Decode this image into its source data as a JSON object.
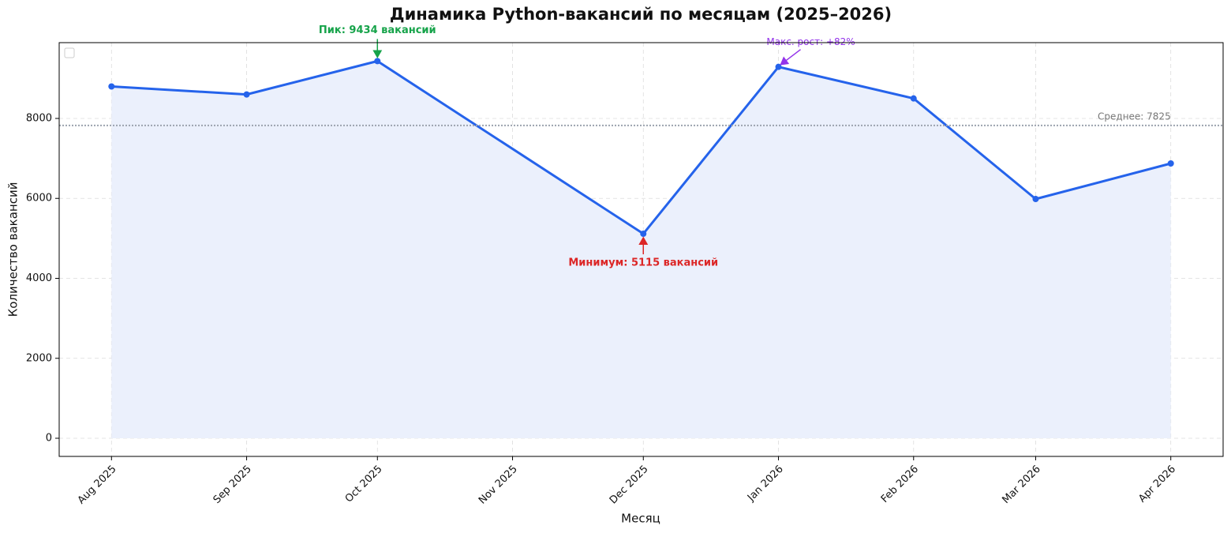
{
  "chart_data": {
    "type": "line",
    "title": "Динамика Python-вакансий по месяцам (2025–2026)",
    "x_label": "Месяц",
    "y_label": "Количество вакансий",
    "x": [
      "2025-08",
      "2025-09",
      "2025-10",
      "2025-12",
      "2026-01",
      "2026-02",
      "2026-03",
      "2026-04"
    ],
    "series": [
      {
        "color": "#2563eb",
        "values": [
          8800,
          8600,
          9434,
          5115,
          9290,
          8500,
          5985,
          6874
        ]
      }
    ],
    "area_fill": "#ebf0fc",
    "xlim": [
      "2025-07-20",
      "2026-04-13"
    ],
    "xticks": [
      {
        "value": "2025-08",
        "label": "Aug 2025"
      },
      {
        "value": "2025-09",
        "label": "Sep 2025"
      },
      {
        "value": "2025-10",
        "label": "Oct 2025"
      },
      {
        "value": "2025-11",
        "label": "Nov 2025"
      },
      {
        "value": "2025-12",
        "label": "Dec 2025"
      },
      {
        "value": "2026-01",
        "label": "Jan 2026"
      },
      {
        "value": "2026-02",
        "label": "Feb 2026"
      },
      {
        "value": "2026-03",
        "label": "Mar 2026"
      },
      {
        "value": "2026-04",
        "label": "Apr 2026"
      }
    ],
    "ylim": [
      -454,
      9896
    ],
    "yticks": [
      0,
      2000,
      4000,
      6000,
      8000
    ],
    "grid": true,
    "mean_line": {
      "text": "Среднее: 7825",
      "value": 7825,
      "color": "#9ca3af"
    },
    "annotations": [
      {
        "text": "Пик: 9434 вакансий",
        "x": "2025-10",
        "y": 9434,
        "color": "#16a34a"
      },
      {
        "text": "Минимум: 5115 вакансий",
        "x": "2025-12",
        "y": 5115,
        "color": "#dc2626"
      },
      {
        "text": "Макс. рост: +82%",
        "x": "2026-01",
        "y": 9290,
        "color": "#9333ea"
      }
    ]
  }
}
